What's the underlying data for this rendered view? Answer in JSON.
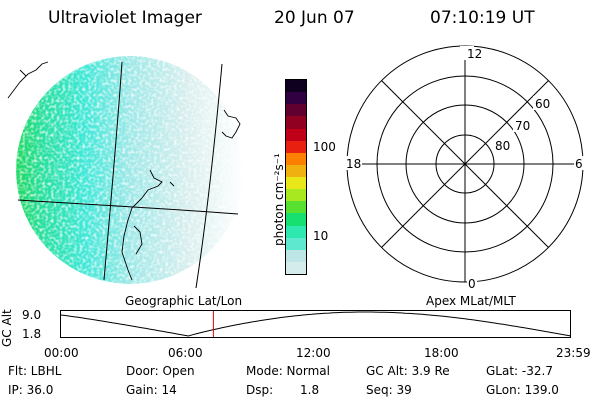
{
  "header": {
    "instrument": "Ultraviolet Imager",
    "date": "20 Jun 07",
    "time": "07:10:19 UT"
  },
  "geo_panel": {
    "label": "Geographic Lat/Lon"
  },
  "apex_panel": {
    "label": "Apex MLat/MLT",
    "mlt_labels": {
      "top": "12",
      "left": "18",
      "right": "6",
      "bottom": "0"
    },
    "lat_labels": [
      "60",
      "70",
      "80"
    ]
  },
  "colorbar": {
    "unit_label": "photon cm⁻²s⁻¹",
    "tick_labels": [
      "100",
      "10"
    ],
    "colors": [
      "#d4ecec",
      "#bfe6e6",
      "#5ee8d0",
      "#2ee8b0",
      "#18e070",
      "#58e030",
      "#a8e820",
      "#e8e818",
      "#f0b010",
      "#ff8000",
      "#e82010",
      "#c00018",
      "#900020",
      "#600030",
      "#300040",
      "#100020"
    ]
  },
  "altitude_panel": {
    "y_axis_label": "GC Alt",
    "y_ticks": [
      "9.0",
      "1.8"
    ],
    "time_ticks": [
      "00:00",
      "06:00",
      "12:00",
      "18:00",
      "23:59"
    ],
    "current_time_hours": 7.17,
    "marker_color": "#e00000"
  },
  "info": {
    "filter": "Flt: LBHL",
    "ip": "IP: 36.0",
    "door": "Door: Open",
    "gain": "Gain: 14",
    "mode": "Mode: Normal",
    "dsp_label": "Dsp:",
    "dsp_value": "1.8",
    "gc_alt": "GC Alt: 3.9 Re",
    "seq": "Seq: 39",
    "glat": "GLat: -32.7",
    "glon": "GLon: 139.0"
  }
}
